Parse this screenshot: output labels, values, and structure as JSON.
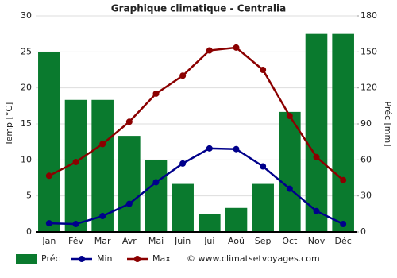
{
  "chart_data": {
    "type": "bar",
    "title": "Graphique climatique - Centralia",
    "categories": [
      "Jan",
      "Fév",
      "Mar",
      "Avr",
      "Mai",
      "Juin",
      "Jui",
      "Aoû",
      "Sep",
      "Oct",
      "Nov",
      "Déc"
    ],
    "series": [
      {
        "name": "Préc",
        "type": "bar",
        "axis": "y2",
        "color": "#0a7a2e",
        "values": [
          150,
          110,
          110,
          80,
          60,
          40,
          15,
          20,
          40,
          100,
          165,
          165
        ]
      },
      {
        "name": "Min",
        "type": "line",
        "color": "#00008b",
        "values": [
          1.2,
          1.1,
          2.2,
          3.9,
          6.9,
          9.5,
          11.6,
          11.5,
          9.1,
          6.0,
          2.9,
          1.1
        ]
      },
      {
        "name": "Max",
        "type": "line",
        "color": "#8b0000",
        "values": [
          7.8,
          9.7,
          12.2,
          15.3,
          19.2,
          21.7,
          25.2,
          25.6,
          22.5,
          16.1,
          10.4,
          7.2
        ]
      }
    ],
    "ylabel": "Temp [°C]",
    "y2label": "Préc [mm]",
    "ylim": [
      0,
      30
    ],
    "yticks": [
      0,
      5,
      10,
      15,
      20,
      25,
      30
    ],
    "y2lim": [
      0,
      180
    ],
    "y2ticks": [
      0,
      30,
      60,
      90,
      120,
      150,
      180
    ],
    "grid": true,
    "legend": "bottom",
    "source": "© www.climatsetvoyages.com"
  }
}
